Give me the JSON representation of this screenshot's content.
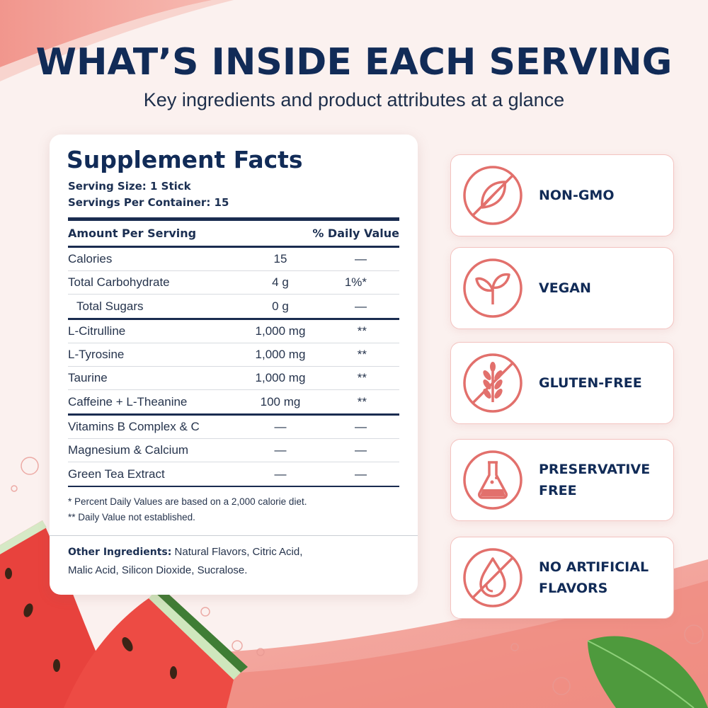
{
  "headline": "WHAT’S INSIDE EACH SERVING",
  "subheadline": "Key ingredients and product attributes at a glance",
  "facts": {
    "title": "Supplement Facts",
    "serving_size": "Serving Size: 1 Stick",
    "servings_per_container": "Servings Per Container: 15",
    "col_amount": "Amount Per Serving",
    "col_dv": "% Daily Value",
    "nutrients": [
      {
        "name": "Calories",
        "amount": "15",
        "dv": "—"
      },
      {
        "name": "Total Carbohydrate",
        "amount": "4 g",
        "dv": "1%*"
      },
      {
        "name": "Total Sugars",
        "amount": "0 g",
        "dv": "—"
      }
    ],
    "actives": [
      {
        "name": "L-Citrulline",
        "amount": "1,000 mg",
        "dv": "**"
      },
      {
        "name": "L-Tyrosine",
        "amount": "1,000 mg",
        "dv": "**"
      },
      {
        "name": "Taurine",
        "amount": "1,000 mg",
        "dv": "**"
      },
      {
        "name": "Caffeine + L-Theanine",
        "amount": "100 mg",
        "dv": "**"
      }
    ],
    "extras": [
      {
        "name": "Vitamins B Complex & C",
        "amount": "—",
        "dv": "—"
      },
      {
        "name": "Magnesium & Calcium",
        "amount": "—",
        "dv": "—"
      },
      {
        "name": "Green Tea Extract",
        "amount": "—",
        "dv": "—"
      }
    ],
    "footnote_1": "* Percent Daily Values are based on a 2,000 calorie diet.",
    "footnote_2": "** Daily Value not established.",
    "other_label": "Other Ingredients:",
    "other_line_1": "Natural Flavors, Citric Acid,",
    "other_line_2": "Malic Acid, Silicon Dioxide, Sucralose."
  },
  "badges": [
    {
      "line1": "NON-GMO",
      "line2": "",
      "icon": "no-leaf-icon"
    },
    {
      "line1": "VEGAN",
      "line2": "",
      "icon": "sprout-icon"
    },
    {
      "line1": "GLUTEN-FREE",
      "line2": "",
      "icon": "no-wheat-icon"
    },
    {
      "line1": "PRESERVATIVE",
      "line2": "FREE",
      "icon": "flask-icon"
    },
    {
      "line1": "NO ARTIFICIAL",
      "line2": "FLAVORS",
      "icon": "no-drop-icon"
    }
  ],
  "colors": {
    "navy": "#112b57",
    "accent": "#e2706c",
    "background": "#fbf1ef"
  }
}
